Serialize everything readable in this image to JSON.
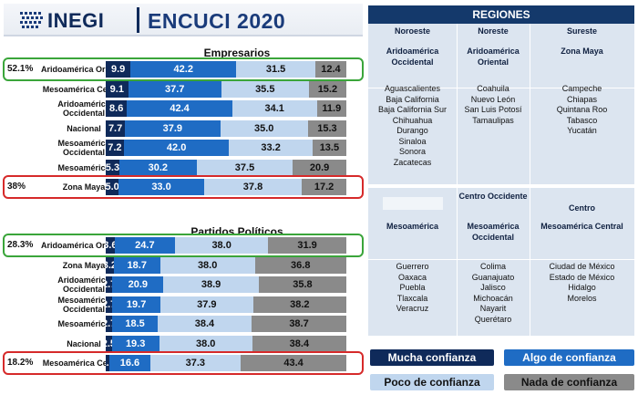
{
  "header": {
    "logo_text": "INEGI",
    "survey_title": "ENCUCI 2020"
  },
  "colors": {
    "mucha": "#0f2a5a",
    "algo": "#1f6cc4",
    "poco": "#c0d6ee",
    "nada": "#8a8a8a",
    "highlight_green": "#3aa53a",
    "highlight_red": "#d62a2a",
    "regiones_bg": "#14396b"
  },
  "chart_data": [
    {
      "type": "bar",
      "stacked": true,
      "orientation": "horizontal",
      "title": "Empresarios",
      "categories": [
        "Aridoamérica Oriental",
        "Mesoamérica Central",
        "Aridoamérica Occidental",
        "Nacional",
        "Mesoamérica Occidental",
        "Mesoamérica",
        "Zona Maya"
      ],
      "series": [
        {
          "name": "Mucha confianza",
          "values": [
            9.9,
            9.1,
            8.6,
            7.7,
            7.2,
            5.3,
            5.0
          ]
        },
        {
          "name": "Algo de confianza",
          "values": [
            42.2,
            37.7,
            42.4,
            37.9,
            42.0,
            30.2,
            33.0
          ]
        },
        {
          "name": "Poco de confianza",
          "values": [
            31.5,
            35.5,
            34.1,
            35.0,
            33.2,
            37.5,
            37.8
          ]
        },
        {
          "name": "Nada de confianza",
          "values": [
            12.4,
            15.2,
            11.9,
            15.3,
            13.5,
            20.9,
            17.2
          ]
        }
      ],
      "highlights": [
        {
          "category": "Aridoamérica Oriental",
          "label": "52.1%",
          "color": "green"
        },
        {
          "category": "Zona Maya",
          "label": "38%",
          "color": "red"
        }
      ]
    },
    {
      "type": "bar",
      "stacked": true,
      "orientation": "horizontal",
      "title": "Partidos Políticos",
      "categories": [
        "Aridoamérica Oriental",
        "Zona Maya",
        "Aridoamérica Occidental",
        "Mesoamérica Occidental",
        "Mesoamérica",
        "Nacional",
        "Mesoamérica Central"
      ],
      "series": [
        {
          "name": "Mucha confianza",
          "values": [
            3.6,
            3.2,
            2.7,
            2.7,
            2.7,
            2.5,
            1.6
          ]
        },
        {
          "name": "Algo de confianza",
          "values": [
            24.7,
            18.7,
            20.9,
            19.7,
            18.5,
            19.3,
            16.6
          ]
        },
        {
          "name": "Poco de confianza",
          "values": [
            38.0,
            38.0,
            38.9,
            37.9,
            38.4,
            38.0,
            37.3
          ]
        },
        {
          "name": "Nada de confianza",
          "values": [
            31.9,
            36.8,
            35.8,
            38.2,
            38.7,
            38.4,
            43.4
          ]
        }
      ],
      "highlights": [
        {
          "category": "Aridoamérica Oriental",
          "label": "28.3%",
          "color": "green"
        },
        {
          "category": "Mesoamérica Central",
          "label": "18.2%",
          "color": "red"
        }
      ]
    }
  ],
  "regiones": {
    "title": "REGIONES",
    "top": [
      {
        "zone": "Noroeste",
        "region": "Aridoamérica Occidental",
        "states": [
          "Aguascalientes",
          "Baja California",
          "Baja California Sur",
          "Chihuahua",
          "Durango",
          "Sinaloa",
          "Sonora",
          "Zacatecas"
        ]
      },
      {
        "zone": "Noreste",
        "region": "Aridoamérica Oriental",
        "states": [
          "Coahuila",
          "Nuevo León",
          "San Luis Potosí",
          "Tamaulipas"
        ]
      },
      {
        "zone": "Sureste",
        "region": "Zona Maya",
        "states": [
          "Campeche",
          "Chiapas",
          "Quintana Roo",
          "Tabasco",
          "Yucatán"
        ]
      }
    ],
    "bottom": [
      {
        "zone": "",
        "region": "Mesoamérica",
        "states": [
          "Guerrero",
          "Oaxaca",
          "Puebla",
          "Tlaxcala",
          "Veracruz"
        ]
      },
      {
        "zone": "Centro Occidente",
        "region": "Mesoamérica Occidental",
        "states": [
          "Colima",
          "Guanajuato",
          "Jalisco",
          "Michoacán",
          "Nayarit",
          "Querétaro"
        ]
      },
      {
        "zone": "Centro",
        "region": "Mesoamérica Central",
        "states": [
          "Ciudad de México",
          "Estado de México",
          "Hidalgo",
          "Morelos"
        ]
      }
    ]
  },
  "legend": [
    "Mucha confianza",
    "Algo de confianza",
    "Poco de confianza",
    "Nada de confianza"
  ]
}
